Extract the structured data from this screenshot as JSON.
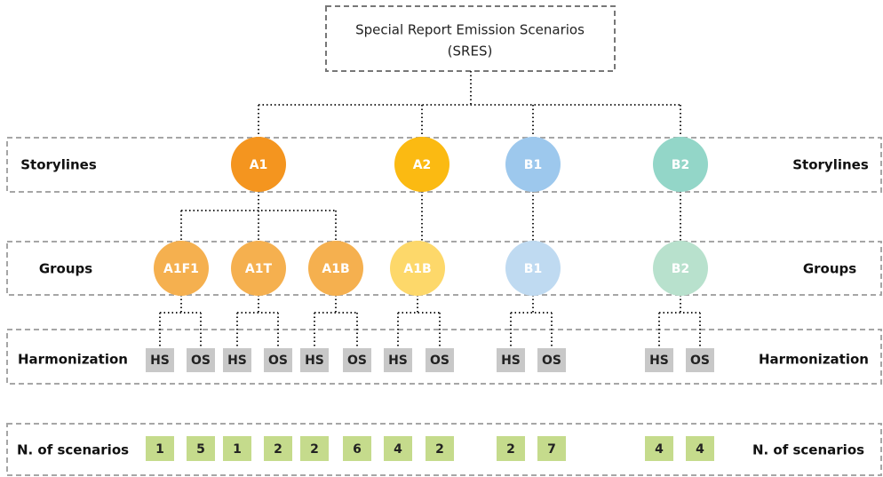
{
  "title_lines": [
    "Special Report Emission Scenarios",
    "(SRES)"
  ],
  "rows": {
    "storylines": {
      "left": "Storylines",
      "right": "Storylines"
    },
    "groups": {
      "left": "Groups",
      "right": "Groups"
    },
    "harmonization": {
      "left": "Harmonization",
      "right": "Harmonization"
    },
    "scenarios": {
      "left": "N. of scenarios",
      "right": "N. of scenarios"
    }
  },
  "storylines": [
    {
      "label": "A1",
      "color": "#f4951f"
    },
    {
      "label": "A2",
      "color": "#fbba12"
    },
    {
      "label": "B1",
      "color": "#9dc8ed"
    },
    {
      "label": "B2",
      "color": "#93d6c8"
    }
  ],
  "groups": [
    {
      "label": "A1F1",
      "color": "#f5b04f"
    },
    {
      "label": "A1T",
      "color": "#f5b04f"
    },
    {
      "label": "A1B",
      "color": "#f5b04f"
    },
    {
      "label": "A1B",
      "color": "#fdd86a"
    },
    {
      "label": "B1",
      "color": "#bfdaf1"
    },
    {
      "label": "B2",
      "color": "#b8e1cd"
    }
  ],
  "harmonization": [
    "HS",
    "OS",
    "HS",
    "OS",
    "HS",
    "OS",
    "HS",
    "OS",
    "HS",
    "OS",
    "HS",
    "OS"
  ],
  "scenarios": [
    1,
    5,
    1,
    2,
    2,
    6,
    4,
    2,
    2,
    7,
    4,
    4
  ]
}
